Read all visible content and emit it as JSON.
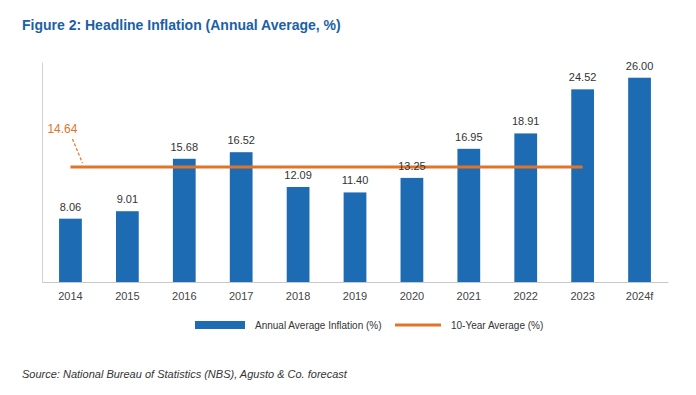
{
  "chart_data": {
    "type": "bar",
    "title": "Figure 2: Headline Inflation (Annual Average, %)",
    "source": "Source: National Bureau of Statistics (NBS), Agusto & Co. forecast",
    "categories": [
      "2014",
      "2015",
      "2016",
      "2017",
      "2018",
      "2019",
      "2020",
      "2021",
      "2022",
      "2023",
      "2024f"
    ],
    "series": [
      {
        "name": "Annual Average Inflation (%)",
        "type": "bar",
        "color": "#1d6cb3",
        "values": [
          8.06,
          9.01,
          15.68,
          16.52,
          12.09,
          11.4,
          13.25,
          16.95,
          18.91,
          24.52,
          26.0
        ],
        "value_labels": [
          "8.06",
          "9.01",
          "15.68",
          "16.52",
          "12.09",
          "11.40",
          "13.25",
          "16.95",
          "18.91",
          "24.52",
          "26.00"
        ]
      },
      {
        "name": "10-Year Average (%)",
        "type": "line",
        "color": "#e2742a",
        "values": [
          14.64,
          14.64,
          14.64,
          14.64,
          14.64,
          14.64,
          14.64,
          14.64,
          14.64,
          14.64,
          null
        ]
      }
    ],
    "annotations": [
      {
        "text": "14.64"
      }
    ],
    "ylim": [
      0,
      28
    ],
    "yticks": [],
    "tick_labels": "x",
    "data_labels": true,
    "grid": false,
    "legend": "bottom"
  }
}
